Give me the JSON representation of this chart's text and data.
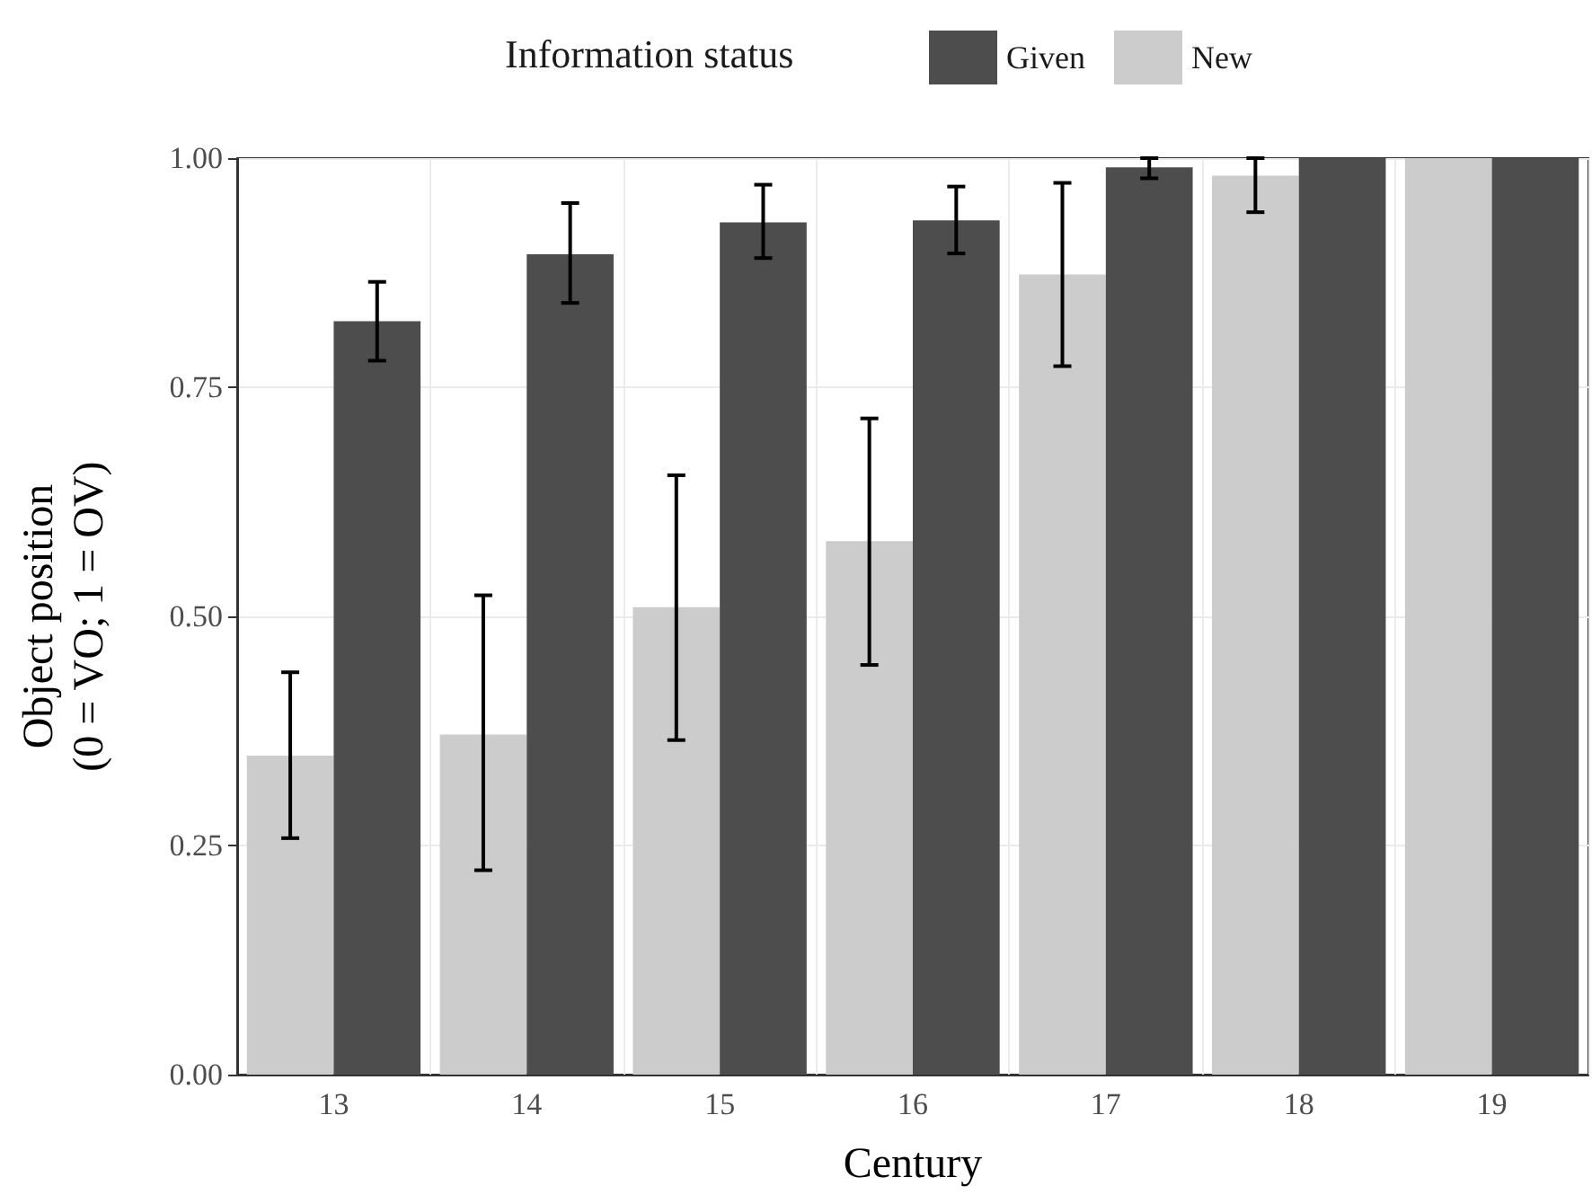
{
  "chart_data": {
    "type": "bar",
    "xlabel": "Century",
    "ylabel": "Object position\n(0 = VO; 1 = OV)",
    "legend_title": "Information status",
    "categories": [
      "13",
      "14",
      "15",
      "16",
      "17",
      "18",
      "19"
    ],
    "series": [
      {
        "name": "New",
        "color": "#cccccc",
        "values": [
          0.348,
          0.371,
          0.51,
          0.582,
          0.873,
          0.981,
          1.0
        ],
        "errors": [
          [
            0.258,
            0.439
          ],
          [
            0.223,
            0.523
          ],
          [
            0.365,
            0.654
          ],
          [
            0.447,
            0.716
          ],
          [
            0.773,
            0.973
          ],
          [
            0.941,
            1.0
          ],
          null
        ]
      },
      {
        "name": "Given",
        "color": "#4d4d4d",
        "values": [
          0.822,
          0.895,
          0.93,
          0.932,
          0.99,
          1.0,
          1.0
        ],
        "errors": [
          [
            0.779,
            0.865
          ],
          [
            0.842,
            0.951
          ],
          [
            0.891,
            0.971
          ],
          [
            0.896,
            0.969
          ],
          [
            0.978,
            1.0
          ],
          null,
          null
        ]
      }
    ],
    "ylim": [
      0,
      1
    ],
    "yticks": [
      {
        "value": 0,
        "label": "0.00"
      },
      {
        "value": 0.25,
        "label": "0.25"
      },
      {
        "value": 0.5,
        "label": "0.50"
      },
      {
        "value": 0.75,
        "label": "0.75"
      },
      {
        "value": 1,
        "label": "1.00"
      }
    ],
    "grid": true,
    "legend": "top"
  }
}
